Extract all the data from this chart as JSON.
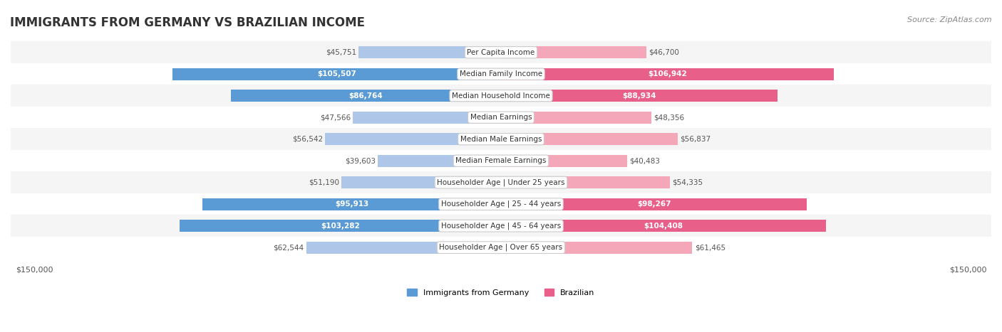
{
  "title": "IMMIGRANTS FROM GERMANY VS BRAZILIAN INCOME",
  "source": "Source: ZipAtlas.com",
  "categories": [
    "Per Capita Income",
    "Median Family Income",
    "Median Household Income",
    "Median Earnings",
    "Median Male Earnings",
    "Median Female Earnings",
    "Householder Age | Under 25 years",
    "Householder Age | 25 - 44 years",
    "Householder Age | 45 - 64 years",
    "Householder Age | Over 65 years"
  ],
  "germany_values": [
    45751,
    105507,
    86764,
    47566,
    56542,
    39603,
    51190,
    95913,
    103282,
    62544
  ],
  "brazil_values": [
    46700,
    106942,
    88934,
    48356,
    56837,
    40483,
    54335,
    98267,
    104408,
    61465
  ],
  "germany_color_light": "#aec6e8",
  "germany_color_dark": "#5b9bd5",
  "brazil_color_light": "#f4a7b9",
  "brazil_color_dark": "#e8608a",
  "max_value": 150000,
  "bar_height": 0.55,
  "bg_row_color": "#f2f2f2",
  "label_threshold": 80000,
  "germany_label_values": [
    105507,
    95913,
    103282
  ],
  "brazil_label_values": [
    106942,
    98267,
    104408
  ]
}
